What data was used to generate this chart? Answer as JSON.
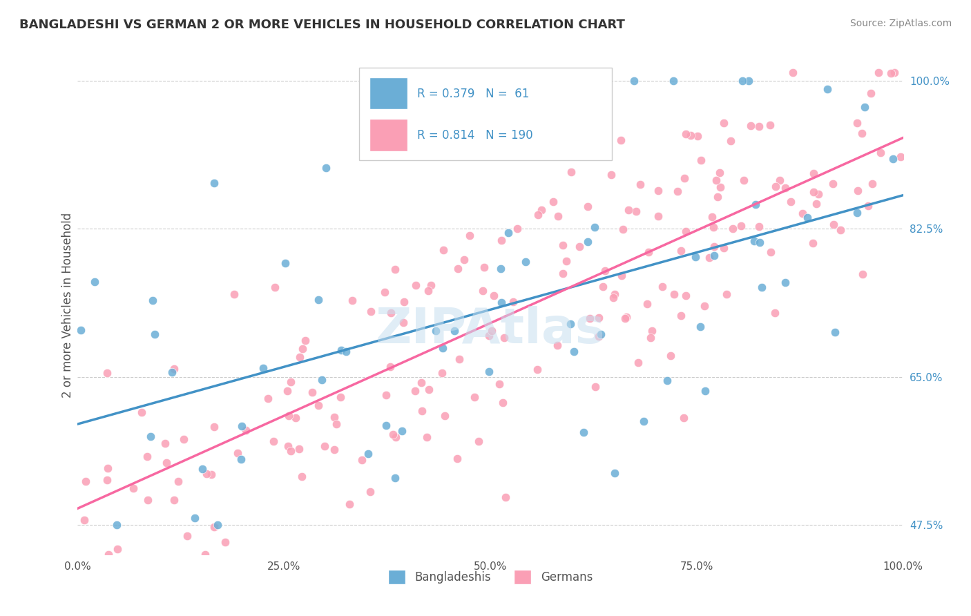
{
  "title": "BANGLADESHI VS GERMAN 2 OR MORE VEHICLES IN HOUSEHOLD CORRELATION CHART",
  "source": "Source: ZipAtlas.com",
  "ylabel": "2 or more Vehicles in Household",
  "xlabel": "",
  "xlim": [
    0,
    100
  ],
  "ylim": [
    44,
    103
  ],
  "yticks": [
    47.5,
    65.0,
    82.5,
    100.0
  ],
  "xticks": [
    0,
    25,
    50,
    75,
    100
  ],
  "xtick_labels": [
    "0.0%",
    "25.0%",
    "50.0%",
    "75.0%",
    "100.0%"
  ],
  "ytick_labels": [
    "47.5%",
    "65.0%",
    "82.5%",
    "100.0%"
  ],
  "legend_r_blue": "R = 0.379",
  "legend_n_blue": "N =  61",
  "legend_r_pink": "R = 0.814",
  "legend_n_pink": "N = 190",
  "blue_color": "#6baed6",
  "pink_color": "#fa9fb5",
  "blue_line_color": "#4292c6",
  "pink_line_color": "#f768a1",
  "watermark": "ZIPAtlas",
  "background_color": "#ffffff",
  "grid_color": "#cccccc",
  "blue_r": 0.379,
  "blue_n": 61,
  "pink_r": 0.814,
  "pink_n": 190,
  "blue_seed": 10,
  "pink_seed": 20
}
